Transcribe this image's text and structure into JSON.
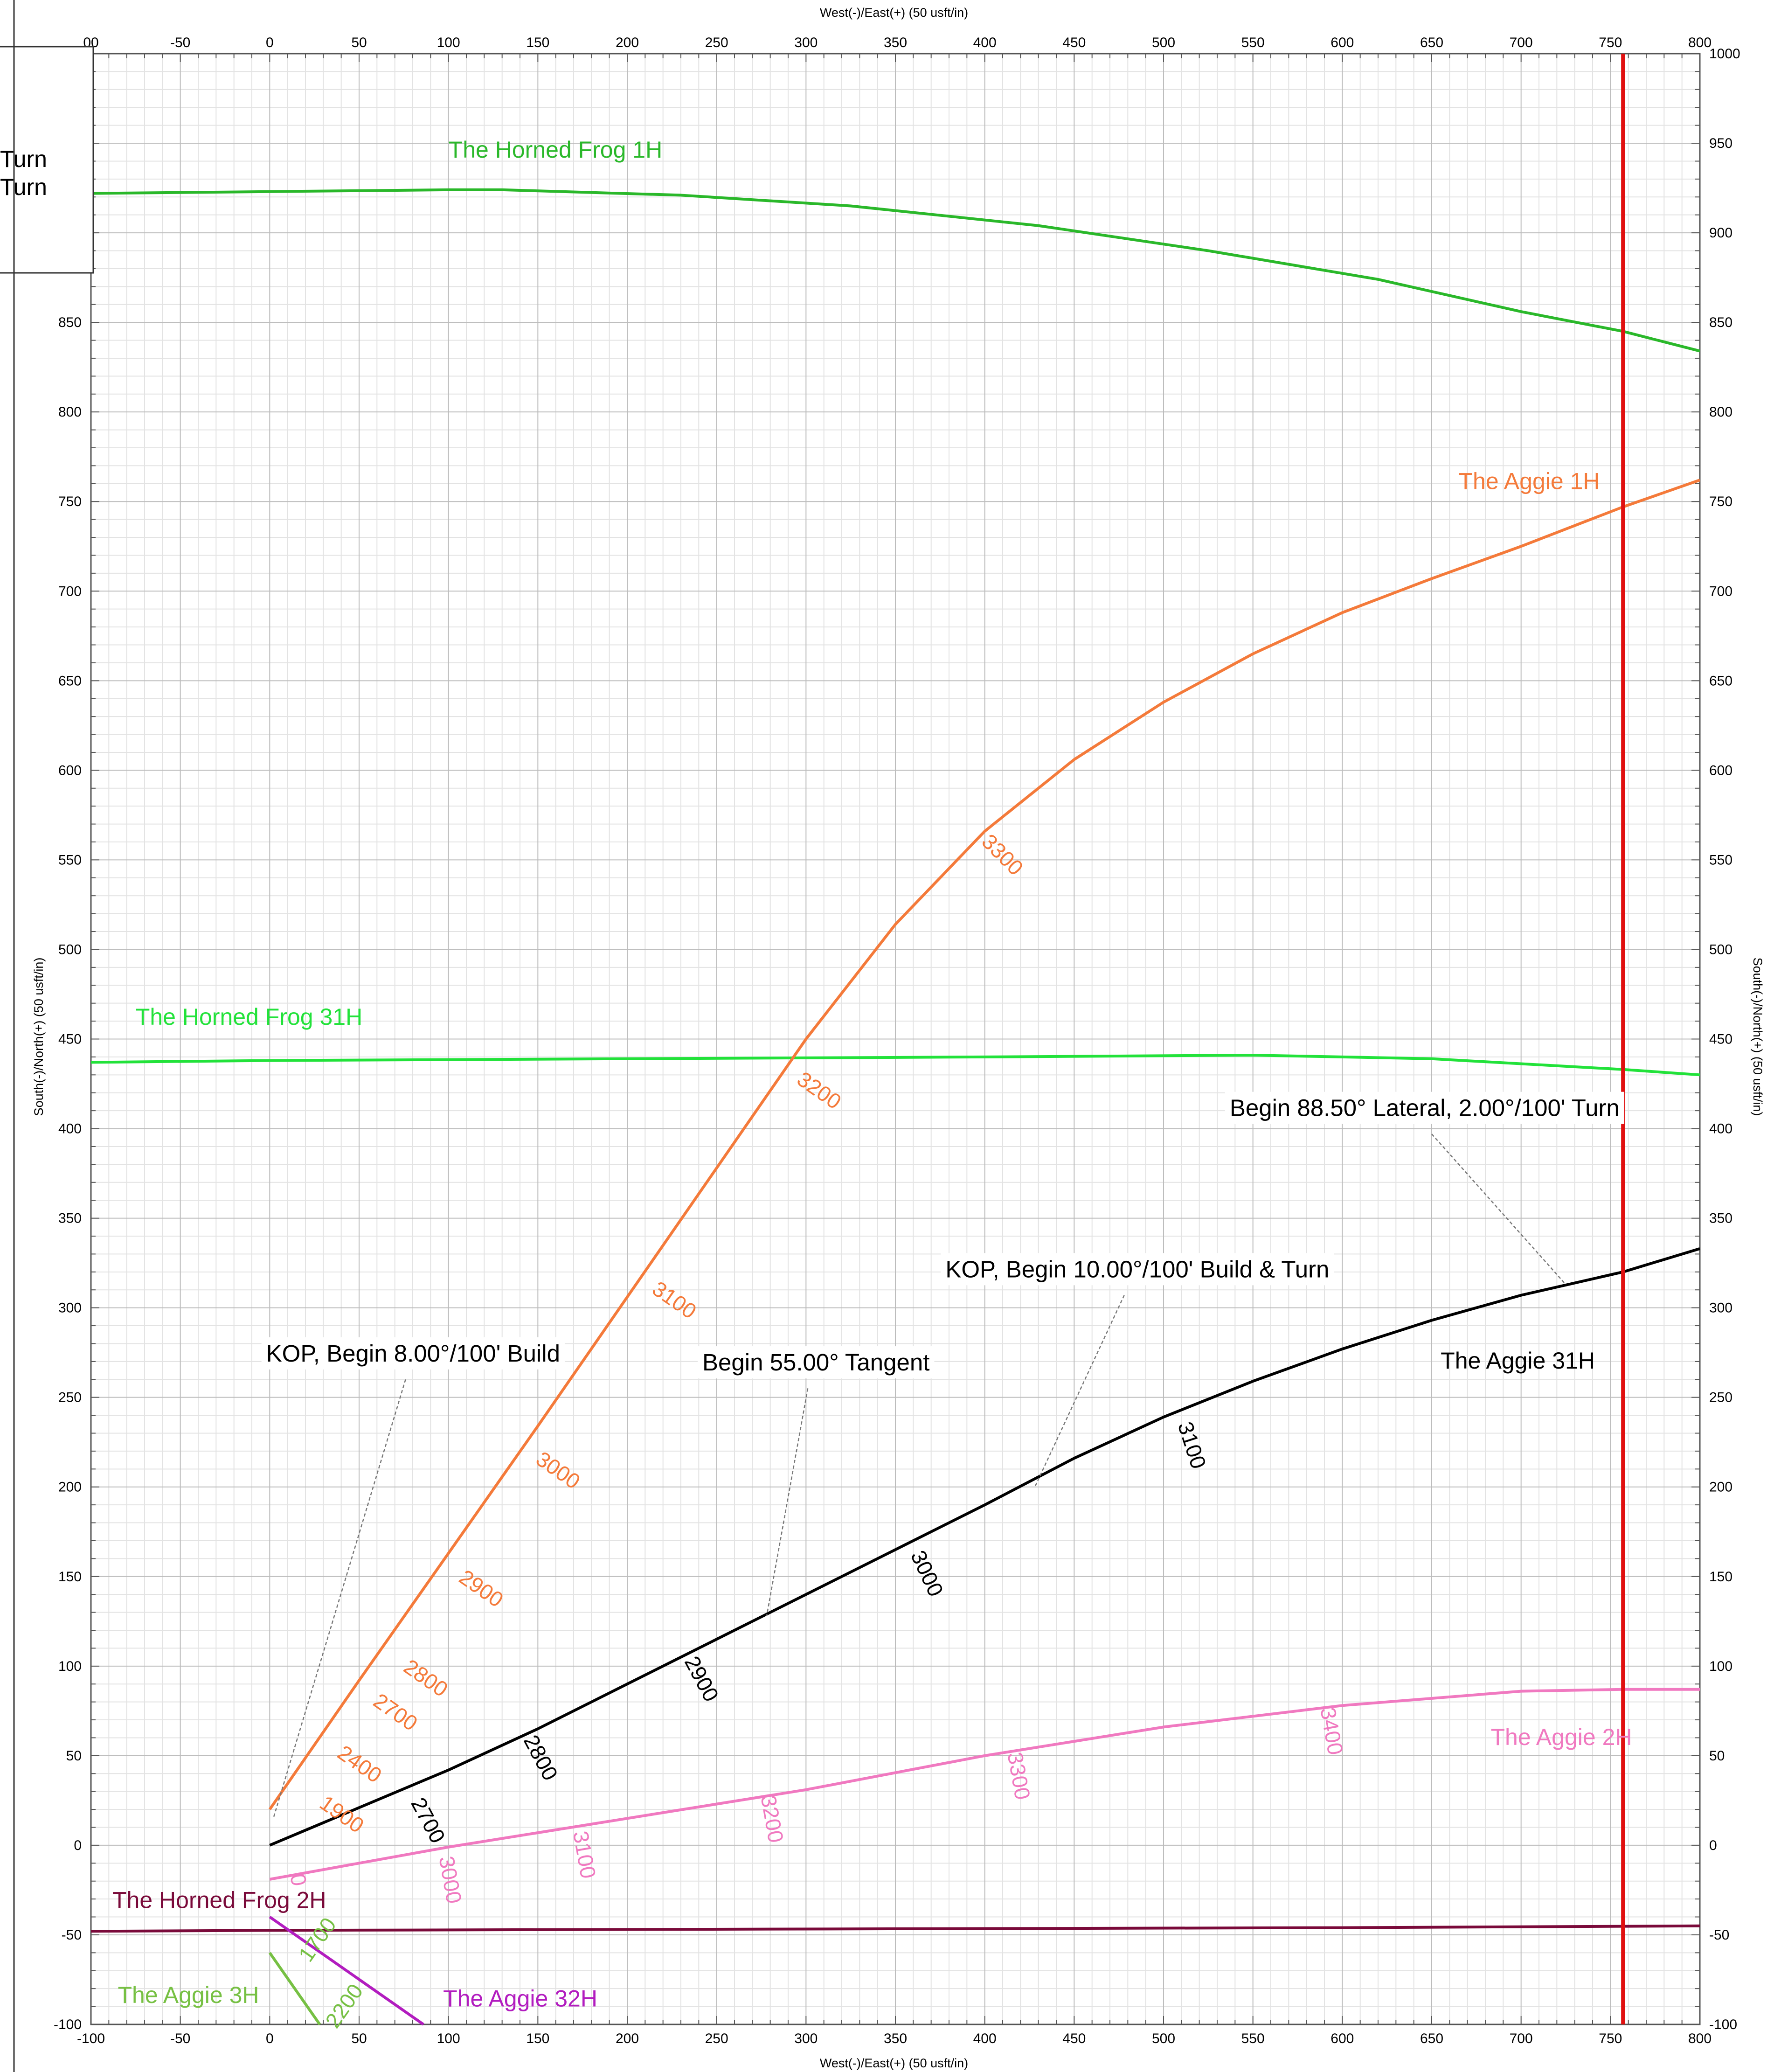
{
  "chart_data": {
    "type": "line",
    "xlabel": "West(-)/East(+) (50 usft/in)",
    "ylabel": "South(-)/North(+) (50 usft/in)",
    "xlim": [
      -100,
      800
    ],
    "ylim": [
      -100,
      1000
    ],
    "x_ticks": [
      -100,
      -50,
      0,
      50,
      100,
      150,
      200,
      250,
      300,
      350,
      400,
      450,
      500,
      550,
      600,
      650,
      700,
      750,
      800
    ],
    "x_tick_labels_top": [
      "00",
      "-50",
      "0",
      "50",
      "100",
      "150",
      "200",
      "250",
      "300",
      "350",
      "400",
      "450",
      "500",
      "550",
      "600",
      "650",
      "700",
      "750",
      "800"
    ],
    "y_ticks": [
      -100,
      -50,
      0,
      50,
      100,
      150,
      200,
      250,
      300,
      350,
      400,
      450,
      500,
      550,
      600,
      650,
      700,
      750,
      800,
      850,
      900,
      950,
      1000
    ],
    "y_tick_labels_left": [
      "-100",
      "-50",
      "0",
      "50",
      "100",
      "150",
      "200",
      "250",
      "300",
      "350",
      "400",
      "450",
      "500",
      "550",
      "600",
      "650",
      "700",
      "750",
      "800",
      "850",
      "",
      "",
      ""
    ],
    "grid": true,
    "minor_grid_step": 10,
    "legend_partial": [
      "Turn",
      "Turn"
    ],
    "vertical_line": {
      "x": 757,
      "color": "#e01010"
    },
    "series": [
      {
        "name": "The Horned Frog 1H",
        "color": "#2ab82a",
        "label_pos": [
          100,
          942
        ],
        "x": [
          -100,
          0,
          100,
          130,
          230,
          325,
          430,
          525,
          620,
          700,
          757,
          800
        ],
        "y": [
          922,
          923,
          924,
          924,
          921,
          915,
          904,
          890,
          874,
          856,
          845,
          834
        ]
      },
      {
        "name": "The Horned Frog 31H",
        "color": "#22e23a",
        "label_pos": [
          -75,
          458
        ],
        "x": [
          -100,
          0,
          200,
          400,
          550,
          650,
          757,
          800
        ],
        "y": [
          437,
          438,
          439,
          440,
          441,
          439,
          433,
          430
        ]
      },
      {
        "name": "The Horned Frog 2H",
        "color": "#7a0a3a",
        "label_pos": [
          -88,
          -35
        ],
        "x": [
          -100,
          0,
          200,
          400,
          600,
          800
        ],
        "y": [
          -48,
          -47.5,
          -47,
          -46.5,
          -46,
          -45
        ]
      },
      {
        "name": "The Aggie 1H",
        "color": "#f47a3a",
        "label_pos": [
          665,
          757
        ],
        "x": [
          0,
          50,
          100,
          150,
          200,
          250,
          300,
          350,
          400,
          450,
          500,
          550,
          600,
          650,
          700,
          757,
          800
        ],
        "y": [
          20,
          92,
          163,
          234,
          306,
          378,
          450,
          514,
          566,
          606,
          638,
          665,
          688,
          707,
          725,
          747,
          762
        ],
        "md_labels": [
          {
            "text": "1900",
            "x": 38,
            "y": 14,
            "angle": 35
          },
          {
            "text": "2400",
            "x": 48,
            "y": 42,
            "angle": 35
          },
          {
            "text": "2700",
            "x": 68,
            "y": 71,
            "angle": 35
          },
          {
            "text": "2800",
            "x": 85,
            "y": 90,
            "angle": 35
          },
          {
            "text": "2900",
            "x": 116,
            "y": 140,
            "angle": 35
          },
          {
            "text": "3000",
            "x": 159,
            "y": 206,
            "angle": 35
          },
          {
            "text": "3100",
            "x": 224,
            "y": 301,
            "angle": 35
          },
          {
            "text": "3200",
            "x": 305,
            "y": 418,
            "angle": 35
          },
          {
            "text": "3300",
            "x": 407,
            "y": 550,
            "angle": 45
          }
        ]
      },
      {
        "name": "The Aggie 31H",
        "color": "#000000",
        "label_pos": [
          655,
          266
        ],
        "x": [
          0,
          50,
          100,
          150,
          200,
          250,
          300,
          350,
          400,
          450,
          500,
          550,
          600,
          650,
          700,
          757,
          800
        ],
        "y": [
          0,
          21,
          42,
          65,
          90,
          115,
          140,
          165,
          190,
          216,
          239,
          259,
          277,
          293,
          307,
          320,
          333
        ],
        "md_labels": [
          {
            "text": "2700",
            "x": 85,
            "y": 12,
            "angle": 62
          },
          {
            "text": "2800",
            "x": 148,
            "y": 47,
            "angle": 62
          },
          {
            "text": "2900",
            "x": 238,
            "y": 91,
            "angle": 62
          },
          {
            "text": "3000",
            "x": 364,
            "y": 150,
            "angle": 65
          },
          {
            "text": "3100",
            "x": 512,
            "y": 222,
            "angle": 72
          }
        ]
      },
      {
        "name": "The Aggie 2H",
        "color": "#f079c0",
        "label_pos": [
          683,
          56
        ],
        "x": [
          0,
          100,
          200,
          300,
          400,
          500,
          600,
          700,
          757,
          800
        ],
        "y": [
          -19,
          -1,
          15,
          31,
          50,
          66,
          78,
          86,
          87,
          87
        ],
        "md_labels": [
          {
            "text": "0",
            "x": 12,
            "y": -20,
            "angle": 80
          },
          {
            "text": "3000",
            "x": 97,
            "y": -20,
            "angle": 80
          },
          {
            "text": "3100",
            "x": 172,
            "y": -6,
            "angle": 80
          },
          {
            "text": "3200",
            "x": 277,
            "y": 14,
            "angle": 80
          },
          {
            "text": "3300",
            "x": 415,
            "y": 38,
            "angle": 80
          },
          {
            "text": "3400",
            "x": 590,
            "y": 63,
            "angle": 80
          }
        ]
      },
      {
        "name": "The Aggie 3H",
        "color": "#76c043",
        "label_pos": [
          -85,
          -88
        ],
        "x": [
          0,
          28
        ],
        "y": [
          -60,
          -100
        ],
        "md_labels": [
          {
            "text": "1700",
            "x": 30,
            "y": -55,
            "angle": -55
          },
          {
            "text": "2200",
            "x": 45,
            "y": -92,
            "angle": -55
          }
        ]
      },
      {
        "name": "The Aggie 32H",
        "color": "#b21cbf",
        "label_pos": [
          97,
          -90
        ],
        "x": [
          0,
          86
        ],
        "y": [
          -40,
          -100
        ]
      }
    ],
    "annotations": [
      {
        "text": "KOP, Begin 8.00°/100' Build",
        "text_pos": [
          -2,
          270
        ],
        "pointer_from": [
          76,
          260
        ],
        "pointer_to": [
          2,
          15
        ]
      },
      {
        "text": "Begin 55.00° Tangent",
        "text_pos": [
          242,
          265
        ],
        "pointer_from": [
          301,
          255
        ],
        "pointer_to": [
          278,
          128
        ]
      },
      {
        "text": "KOP, Begin 10.00°/100' Build & Turn",
        "text_pos": [
          378,
          317
        ],
        "pointer_from": [
          478,
          307
        ],
        "pointer_to": [
          428,
          200
        ]
      },
      {
        "text": "Begin 88.50° Lateral, 2.00°/100' Turn",
        "text_pos": [
          537,
          407
        ],
        "pointer_from": [
          650,
          397
        ],
        "pointer_to": [
          725,
          313
        ]
      }
    ]
  }
}
